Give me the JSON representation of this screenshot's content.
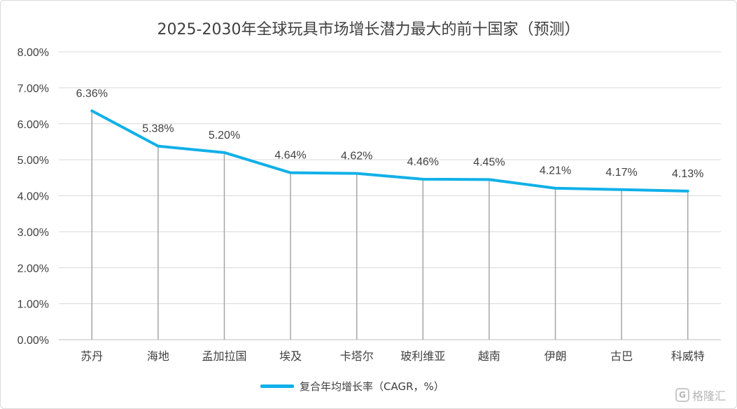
{
  "chart_data": {
    "type": "line",
    "title": "2025-2030年全球玩具市场增长潜力最大的前十国家（预测）",
    "categories": [
      "苏丹",
      "海地",
      "孟加拉国",
      "埃及",
      "卡塔尔",
      "玻利维亚",
      "越南",
      "伊朗",
      "古巴",
      "科威特"
    ],
    "series": [
      {
        "name": "复合年均增长率（CAGR，%）",
        "values": [
          6.36,
          5.38,
          5.2,
          4.64,
          4.62,
          4.46,
          4.45,
          4.21,
          4.17,
          4.13
        ],
        "labels": [
          "6.36%",
          "5.38%",
          "5.20%",
          "4.64%",
          "4.62%",
          "4.46%",
          "4.45%",
          "4.21%",
          "4.17%",
          "4.13%"
        ],
        "color": "#11b0e8"
      }
    ],
    "ylim": [
      0,
      8
    ],
    "yticks": [
      "0.00%",
      "1.00%",
      "2.00%",
      "3.00%",
      "4.00%",
      "5.00%",
      "6.00%",
      "7.00%",
      "8.00%"
    ],
    "xlabel": "",
    "ylabel": "",
    "grid": true,
    "drop_lines": true,
    "legend_position": "bottom"
  },
  "watermark": {
    "icon": "gelonghui-logo-icon",
    "text": "格隆汇"
  }
}
